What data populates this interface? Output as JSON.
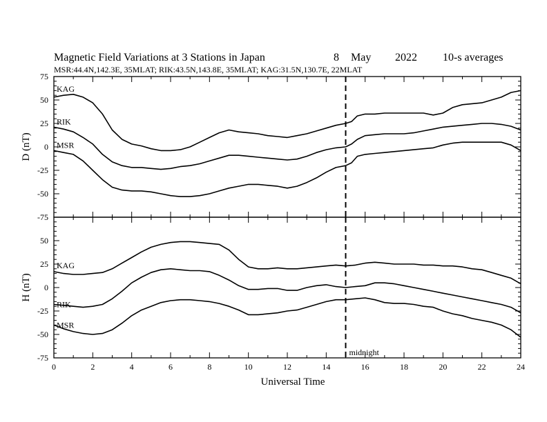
{
  "figure": {
    "title_main": "Magnetic Field Variations at 3 Stations in Japan",
    "title_day": "8",
    "title_month": "May",
    "title_year": "2022",
    "title_avg": "10-s averages",
    "subtitle": "MSR:44.4N,142.3E, 35MLAT;  RIK:43.5N,143.8E, 35MLAT;  KAG:31.5N,130.7E, 22MLAT",
    "xlabel": "Universal Time",
    "midnight_label": "midnight",
    "colors": {
      "line": "#000000",
      "background": "#ffffff"
    }
  },
  "chart_data": [
    {
      "type": "line",
      "panel": "D",
      "ylabel": "D (nT)",
      "xlim": [
        0,
        24
      ],
      "ylim": [
        -75,
        75
      ],
      "xticks": [
        "0",
        "2",
        "4",
        "6",
        "8",
        "10",
        "12",
        "14",
        "16",
        "18",
        "20",
        "22",
        "24"
      ],
      "yticks": [
        "75",
        "50",
        "25",
        "0",
        "-25",
        "-50",
        "-75"
      ],
      "midnight_ut": 15,
      "x": [
        0,
        0.5,
        1,
        1.5,
        2,
        2.5,
        3,
        3.5,
        4,
        4.5,
        5,
        5.5,
        6,
        6.5,
        7,
        7.5,
        8,
        8.5,
        9,
        9.5,
        10,
        10.5,
        11,
        11.5,
        12,
        12.5,
        13,
        13.5,
        14,
        14.5,
        15,
        15.3,
        15.6,
        16,
        16.5,
        17,
        17.5,
        18,
        18.5,
        19,
        19.5,
        20,
        20.5,
        21,
        21.5,
        22,
        22.5,
        23,
        23.5,
        24
      ],
      "series": [
        {
          "name": "KAG",
          "values": [
            53,
            55,
            56,
            53,
            47,
            35,
            18,
            8,
            3,
            1,
            -2,
            -4,
            -4,
            -3,
            0,
            5,
            10,
            15,
            18,
            16,
            15,
            14,
            12,
            11,
            10,
            12,
            14,
            17,
            20,
            23,
            25,
            27,
            33,
            35,
            35,
            36,
            36,
            36,
            36,
            36,
            34,
            36,
            42,
            45,
            46,
            47,
            50,
            53,
            58,
            60
          ]
        },
        {
          "name": "RIK",
          "values": [
            21,
            19,
            16,
            10,
            3,
            -8,
            -16,
            -20,
            -22,
            -22,
            -23,
            -24,
            -23,
            -21,
            -20,
            -18,
            -15,
            -12,
            -9,
            -9,
            -10,
            -11,
            -12,
            -13,
            -14,
            -13,
            -10,
            -6,
            -3,
            -1,
            0,
            3,
            8,
            12,
            13,
            14,
            14,
            14,
            15,
            17,
            19,
            21,
            22,
            23,
            24,
            25,
            25,
            24,
            22,
            18
          ]
        },
        {
          "name": "MSR",
          "values": [
            -4,
            -6,
            -8,
            -15,
            -25,
            -35,
            -43,
            -46,
            -47,
            -47,
            -48,
            -50,
            -52,
            -53,
            -53,
            -52,
            -50,
            -47,
            -44,
            -42,
            -40,
            -40,
            -41,
            -42,
            -44,
            -42,
            -38,
            -33,
            -27,
            -22,
            -20,
            -17,
            -10,
            -8,
            -7,
            -6,
            -5,
            -4,
            -3,
            -2,
            -1,
            2,
            4,
            5,
            5,
            5,
            5,
            5,
            2,
            -4
          ]
        }
      ]
    },
    {
      "type": "line",
      "panel": "H",
      "ylabel": "H (nT)",
      "xlim": [
        0,
        24
      ],
      "ylim": [
        -75,
        75
      ],
      "xticks": [
        "0",
        "2",
        "4",
        "6",
        "8",
        "10",
        "12",
        "14",
        "16",
        "18",
        "20",
        "22",
        "24"
      ],
      "yticks": [
        "75",
        "50",
        "25",
        "0",
        "-25",
        "-50",
        "-75"
      ],
      "midnight_ut": 15,
      "x": [
        0,
        0.5,
        1,
        1.5,
        2,
        2.5,
        3,
        3.5,
        4,
        4.5,
        5,
        5.5,
        6,
        6.5,
        7,
        7.5,
        8,
        8.5,
        9,
        9.5,
        10,
        10.5,
        11,
        11.5,
        12,
        12.5,
        13,
        13.5,
        14,
        14.5,
        15,
        15.5,
        16,
        16.5,
        17,
        17.5,
        18,
        18.5,
        19,
        19.5,
        20,
        20.5,
        21,
        21.5,
        22,
        22.5,
        23,
        23.5,
        24
      ],
      "series": [
        {
          "name": "KAG",
          "values": [
            17,
            15,
            14,
            14,
            15,
            16,
            20,
            26,
            32,
            38,
            43,
            46,
            48,
            49,
            49,
            48,
            47,
            46,
            40,
            30,
            22,
            20,
            20,
            21,
            20,
            20,
            21,
            22,
            23,
            24,
            23,
            24,
            26,
            27,
            26,
            25,
            25,
            25,
            24,
            24,
            23,
            23,
            22,
            20,
            19,
            16,
            13,
            10,
            4
          ]
        },
        {
          "name": "RIK",
          "values": [
            -18,
            -19,
            -20,
            -21,
            -20,
            -18,
            -12,
            -4,
            5,
            11,
            16,
            19,
            20,
            19,
            18,
            18,
            17,
            13,
            8,
            2,
            -2,
            -2,
            -1,
            -1,
            -3,
            -3,
            0,
            2,
            3,
            1,
            0,
            1,
            2,
            5,
            5,
            4,
            2,
            0,
            -2,
            -4,
            -6,
            -8,
            -10,
            -12,
            -14,
            -16,
            -18,
            -21,
            -27
          ]
        },
        {
          "name": "MSR",
          "values": [
            -40,
            -44,
            -47,
            -49,
            -50,
            -49,
            -45,
            -38,
            -30,
            -24,
            -20,
            -16,
            -14,
            -13,
            -13,
            -14,
            -15,
            -17,
            -20,
            -24,
            -29,
            -29,
            -28,
            -27,
            -25,
            -24,
            -21,
            -18,
            -15,
            -13,
            -13,
            -12,
            -11,
            -13,
            -16,
            -17,
            -17,
            -18,
            -20,
            -21,
            -25,
            -28,
            -30,
            -33,
            -35,
            -37,
            -40,
            -45,
            -53
          ]
        }
      ]
    }
  ]
}
